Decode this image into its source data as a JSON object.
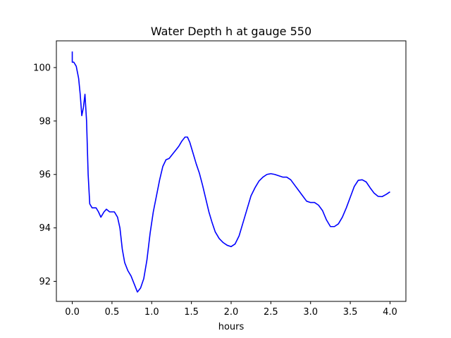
{
  "chart_data": {
    "type": "line",
    "title": "Water Depth h at gauge 550",
    "xlabel": "hours",
    "ylabel": "",
    "xlim": [
      -0.2,
      4.2
    ],
    "ylim": [
      91.25,
      101.0
    ],
    "xticks": [
      0.0,
      0.5,
      1.0,
      1.5,
      2.0,
      2.5,
      3.0,
      3.5,
      4.0
    ],
    "xtick_labels": [
      "0.0",
      "0.5",
      "1.0",
      "1.5",
      "2.0",
      "2.5",
      "3.0",
      "3.5",
      "4.0"
    ],
    "yticks": [
      92,
      94,
      96,
      98,
      100
    ],
    "ytick_labels": [
      "92",
      "94",
      "96",
      "98",
      "100"
    ],
    "grid": false,
    "legend": "none",
    "series": [
      {
        "color": "#0000ff",
        "points": [
          [
            0.0,
            100.6
          ],
          [
            0.0,
            100.2
          ],
          [
            0.02,
            100.2
          ],
          [
            0.05,
            100.05
          ],
          [
            0.08,
            99.6
          ],
          [
            0.1,
            99.0
          ],
          [
            0.12,
            98.2
          ],
          [
            0.14,
            98.5
          ],
          [
            0.16,
            99.0
          ],
          [
            0.18,
            98.0
          ],
          [
            0.2,
            96.0
          ],
          [
            0.22,
            94.9
          ],
          [
            0.25,
            94.75
          ],
          [
            0.3,
            94.75
          ],
          [
            0.33,
            94.6
          ],
          [
            0.36,
            94.4
          ],
          [
            0.4,
            94.6
          ],
          [
            0.43,
            94.7
          ],
          [
            0.47,
            94.6
          ],
          [
            0.5,
            94.6
          ],
          [
            0.53,
            94.6
          ],
          [
            0.57,
            94.4
          ],
          [
            0.6,
            94.0
          ],
          [
            0.63,
            93.2
          ],
          [
            0.66,
            92.7
          ],
          [
            0.7,
            92.4
          ],
          [
            0.74,
            92.2
          ],
          [
            0.78,
            91.9
          ],
          [
            0.82,
            91.6
          ],
          [
            0.86,
            91.75
          ],
          [
            0.9,
            92.1
          ],
          [
            0.94,
            92.8
          ],
          [
            0.98,
            93.8
          ],
          [
            1.02,
            94.6
          ],
          [
            1.06,
            95.2
          ],
          [
            1.1,
            95.8
          ],
          [
            1.14,
            96.3
          ],
          [
            1.18,
            96.55
          ],
          [
            1.22,
            96.6
          ],
          [
            1.26,
            96.75
          ],
          [
            1.3,
            96.9
          ],
          [
            1.34,
            97.05
          ],
          [
            1.38,
            97.25
          ],
          [
            1.42,
            97.4
          ],
          [
            1.45,
            97.4
          ],
          [
            1.48,
            97.2
          ],
          [
            1.52,
            96.8
          ],
          [
            1.56,
            96.4
          ],
          [
            1.6,
            96.05
          ],
          [
            1.64,
            95.6
          ],
          [
            1.68,
            95.1
          ],
          [
            1.72,
            94.6
          ],
          [
            1.76,
            94.2
          ],
          [
            1.8,
            93.85
          ],
          [
            1.85,
            93.6
          ],
          [
            1.9,
            93.45
          ],
          [
            1.95,
            93.35
          ],
          [
            2.0,
            93.3
          ],
          [
            2.05,
            93.4
          ],
          [
            2.1,
            93.7
          ],
          [
            2.15,
            94.2
          ],
          [
            2.2,
            94.7
          ],
          [
            2.25,
            95.2
          ],
          [
            2.3,
            95.5
          ],
          [
            2.35,
            95.75
          ],
          [
            2.4,
            95.9
          ],
          [
            2.45,
            96.0
          ],
          [
            2.5,
            96.03
          ],
          [
            2.55,
            96.0
          ],
          [
            2.6,
            95.95
          ],
          [
            2.65,
            95.9
          ],
          [
            2.7,
            95.9
          ],
          [
            2.75,
            95.8
          ],
          [
            2.8,
            95.6
          ],
          [
            2.85,
            95.4
          ],
          [
            2.9,
            95.2
          ],
          [
            2.95,
            95.0
          ],
          [
            3.0,
            94.95
          ],
          [
            3.05,
            94.95
          ],
          [
            3.1,
            94.85
          ],
          [
            3.15,
            94.65
          ],
          [
            3.2,
            94.3
          ],
          [
            3.25,
            94.05
          ],
          [
            3.3,
            94.05
          ],
          [
            3.35,
            94.15
          ],
          [
            3.4,
            94.4
          ],
          [
            3.45,
            94.75
          ],
          [
            3.5,
            95.15
          ],
          [
            3.55,
            95.55
          ],
          [
            3.6,
            95.78
          ],
          [
            3.65,
            95.8
          ],
          [
            3.7,
            95.72
          ],
          [
            3.75,
            95.5
          ],
          [
            3.8,
            95.3
          ],
          [
            3.85,
            95.18
          ],
          [
            3.9,
            95.17
          ],
          [
            3.95,
            95.25
          ],
          [
            4.0,
            95.35
          ]
        ]
      }
    ]
  }
}
